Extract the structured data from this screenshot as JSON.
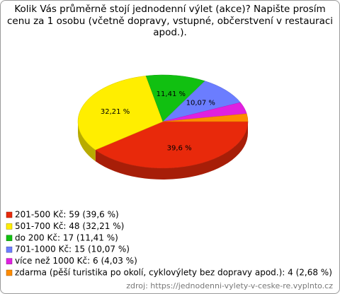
{
  "chart_data": {
    "type": "pie",
    "title": "Kolik Vás průměrně stojí jednodenní výlet (akce)? Napište prosím cenu za 1 osobu (včetně dopravy, vstupné, občerstvení v restauraci apod.).",
    "categories": [
      "201-500 Kč: 59 (39,6 %)",
      "501-700 Kč: 48 (32,21 %)",
      "do 200 Kč: 17 (11,41 %)",
      "701-1000 Kč: 15 (10,07 %)",
      "více než 1000 Kč: 6 (4,03 %)",
      "zdarma (pěší turistika po okolí, cyklovýlety bez dopravy apod.): 4 (2,68 %)"
    ],
    "values": [
      39.6,
      32.21,
      11.41,
      10.07,
      4.03,
      2.68
    ],
    "value_labels": [
      "39,6 %",
      "32,21 %",
      "11,41 %",
      "10,07 %",
      null,
      null
    ],
    "colors": [
      "#e8290b",
      "#ffee00",
      "#11c011",
      "#6b7dff",
      "#e020e0",
      "#ff8c00"
    ],
    "source": "zdroj: https://jednodenni-vylety-v-ceske-re.vyplnto.cz"
  }
}
